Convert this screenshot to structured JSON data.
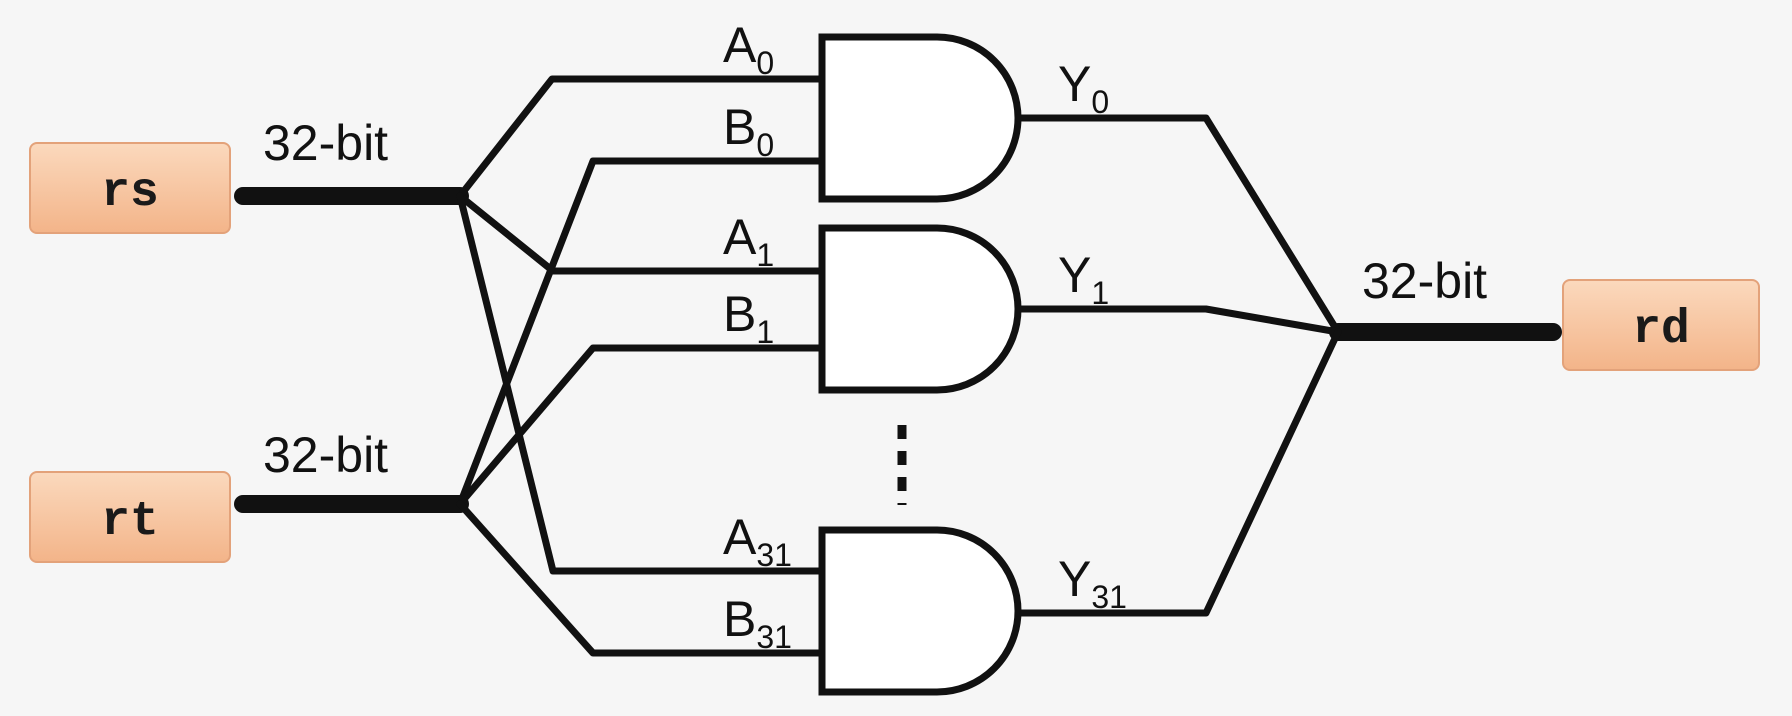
{
  "colors": {
    "register_fill": "#f9c8a4",
    "register_stroke": "#e3a27a",
    "background": "#f6f6f6"
  },
  "registers": {
    "rs": "rs",
    "rt": "rt",
    "rd": "rd"
  },
  "bus_width": {
    "rs": "32-bit",
    "rt": "32-bit",
    "rd": "32-bit"
  },
  "gates": [
    {
      "a": {
        "base": "A",
        "sub": "0"
      },
      "b": {
        "base": "B",
        "sub": "0"
      },
      "y": {
        "base": "Y",
        "sub": "0"
      }
    },
    {
      "a": {
        "base": "A",
        "sub": "1"
      },
      "b": {
        "base": "B",
        "sub": "1"
      },
      "y": {
        "base": "Y",
        "sub": "1"
      }
    },
    {
      "a": {
        "base": "A",
        "sub": "31"
      },
      "b": {
        "base": "B",
        "sub": "31"
      },
      "y": {
        "base": "Y",
        "sub": "31"
      }
    }
  ]
}
